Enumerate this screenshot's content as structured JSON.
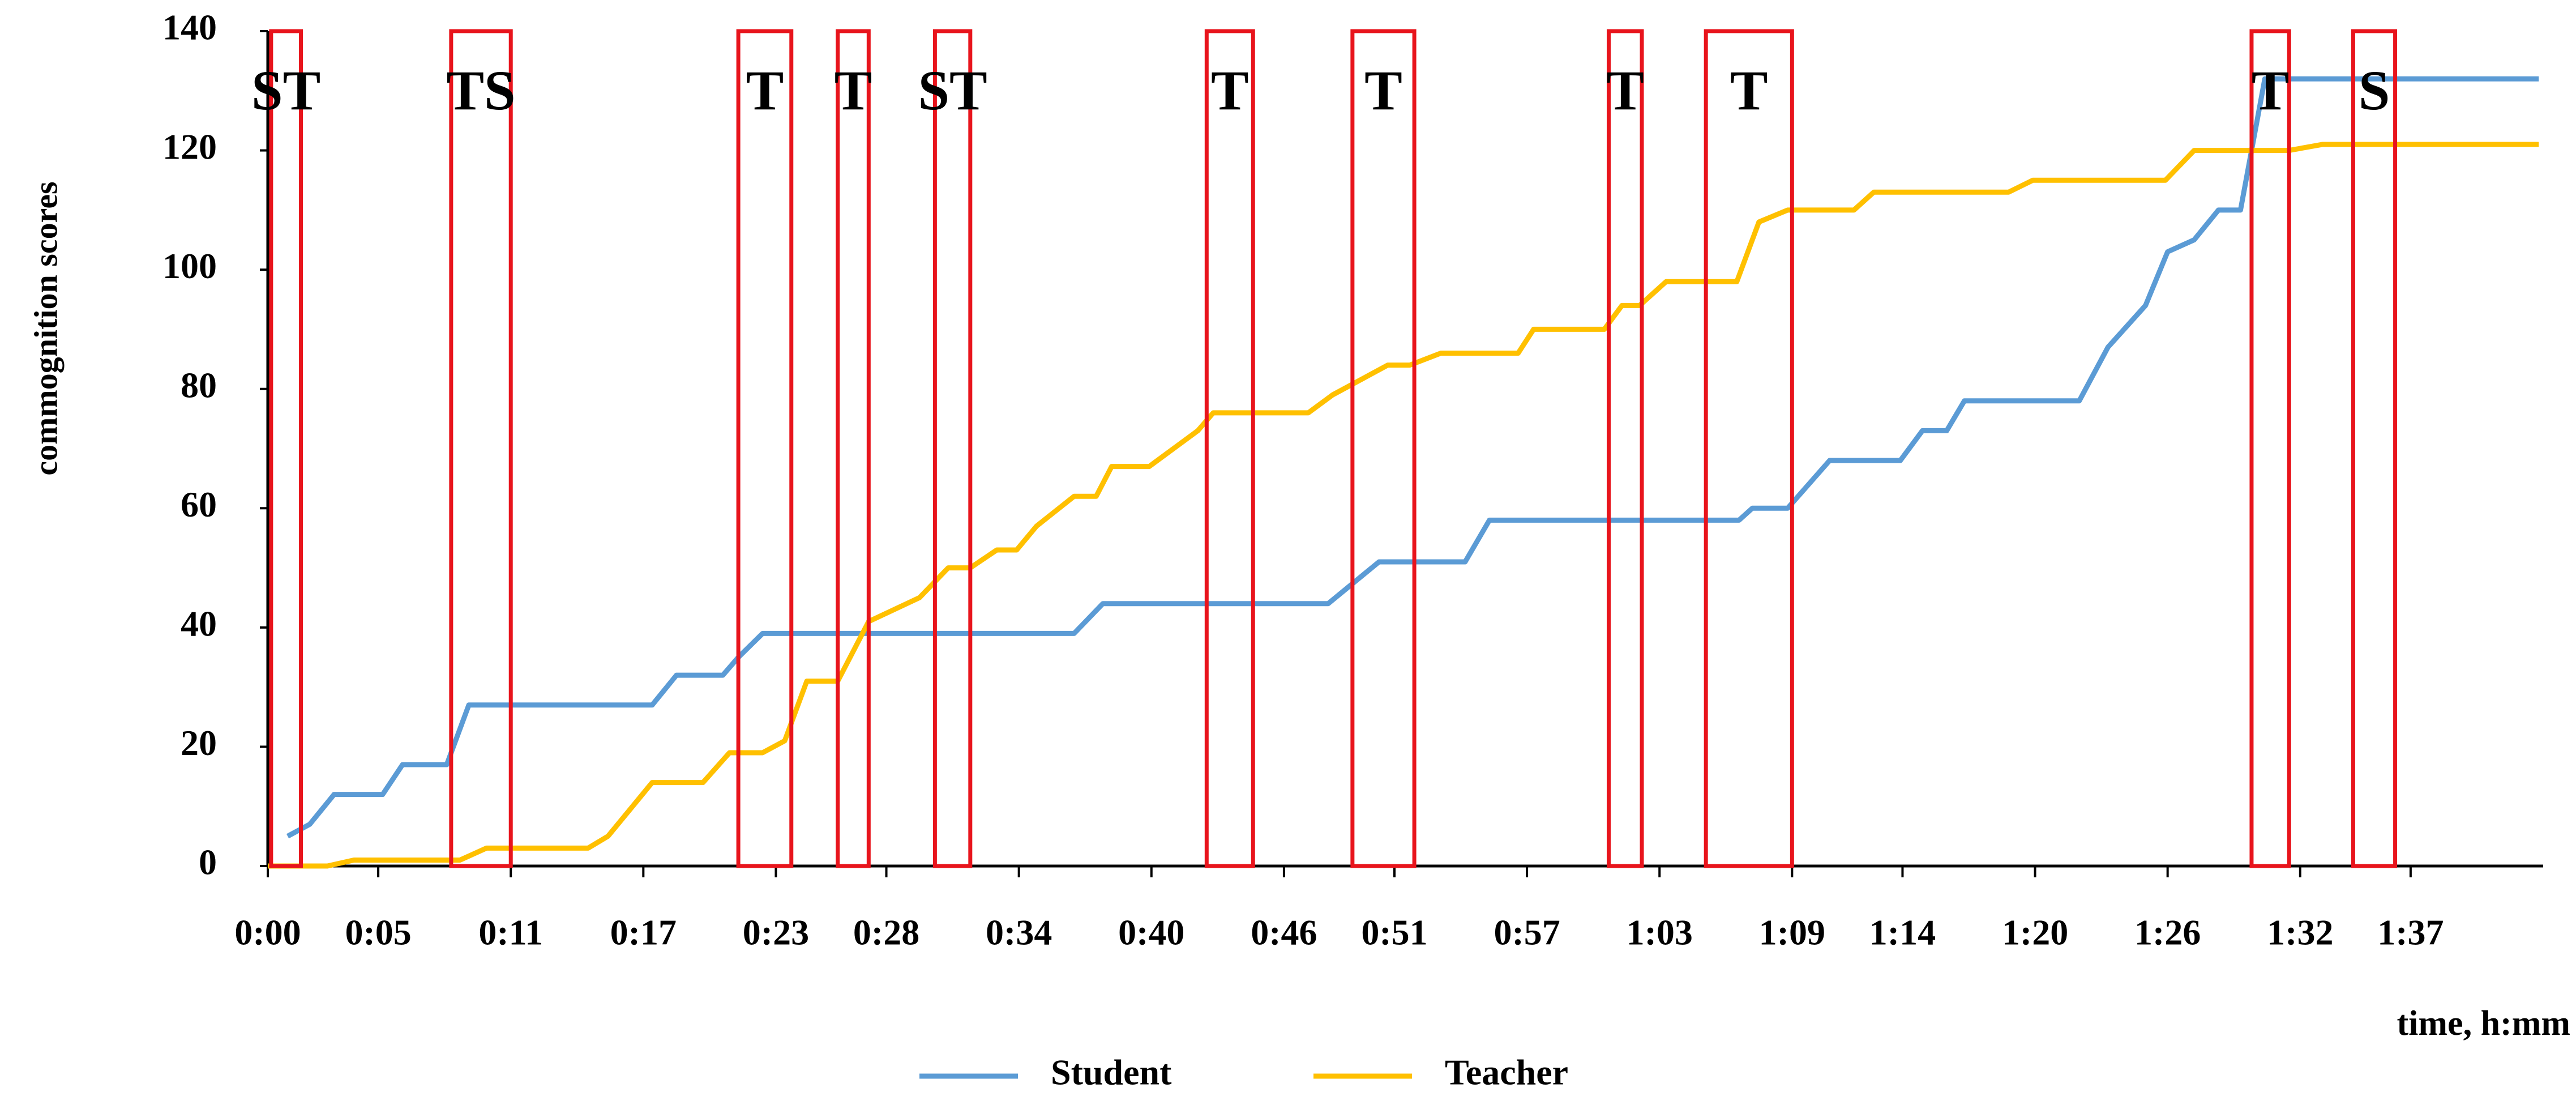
{
  "chart_data": {
    "type": "line",
    "y_label": "commognition scores",
    "x_label": "time, h:mm",
    "xlim": [
      0,
      103
    ],
    "xticks": [
      {
        "value": 0,
        "label": "0:00"
      },
      {
        "value": 5,
        "label": "0:05"
      },
      {
        "value": 11,
        "label": "0:11"
      },
      {
        "value": 17,
        "label": "0:17"
      },
      {
        "value": 23,
        "label": "0:23"
      },
      {
        "value": 28,
        "label": "0:28"
      },
      {
        "value": 34,
        "label": "0:34"
      },
      {
        "value": 40,
        "label": "0:40"
      },
      {
        "value": 46,
        "label": "0:46"
      },
      {
        "value": 51,
        "label": "0:51"
      },
      {
        "value": 57,
        "label": "0:57"
      },
      {
        "value": 63,
        "label": "1:03"
      },
      {
        "value": 69,
        "label": "1:09"
      },
      {
        "value": 74,
        "label": "1:14"
      },
      {
        "value": 80,
        "label": "1:20"
      },
      {
        "value": 86,
        "label": "1:26"
      },
      {
        "value": 92,
        "label": "1:32"
      },
      {
        "value": 97,
        "label": "1:37"
      }
    ],
    "ylim": [
      0,
      140
    ],
    "yticks": [
      0,
      20,
      40,
      60,
      80,
      100,
      120,
      140
    ],
    "series": [
      {
        "name": "Student",
        "color": "#5b9bd5",
        "x": [
          0.9,
          1.9,
          3,
          5.2,
          6.1,
          8.1,
          9.1,
          17.4,
          18.5,
          20.6,
          21.3,
          22.4,
          36.5,
          37.8,
          48,
          50.3,
          54.2,
          55.3,
          66.6,
          67.2,
          68.8,
          70.7,
          73.9,
          74.9,
          76,
          76.8,
          82,
          83.3,
          85,
          86,
          87.2,
          88.3,
          89.3,
          90.4,
          102.8
        ],
        "values": [
          5,
          7,
          12,
          12,
          17,
          17,
          27,
          27,
          32,
          32,
          35,
          39,
          39,
          44,
          44,
          51,
          51,
          58,
          58,
          60,
          60,
          68,
          68,
          73,
          73,
          78,
          78,
          87,
          94,
          103,
          105,
          110,
          110,
          132,
          132
        ]
      },
      {
        "name": "Teacher",
        "color": "#ffc000",
        "x": [
          0,
          2.7,
          3.9,
          8.7,
          9.9,
          14.5,
          15.4,
          17.4,
          19.7,
          20.9,
          22.4,
          23.4,
          24.4,
          25.8,
          27.2,
          29.5,
          30.8,
          31.8,
          33,
          33.9,
          34.8,
          36.5,
          37.5,
          38.2,
          39.9,
          42.1,
          42.8,
          47.1,
          48.2,
          50.7,
          51.7,
          53.1,
          56.6,
          57.3,
          60.5,
          61.3,
          62.1,
          63.3,
          66.5,
          67.5,
          68.8,
          71.8,
          72.7,
          78.8,
          79.9,
          85.9,
          87.2,
          91.5,
          93,
          102.8
        ],
        "values": [
          0,
          0,
          1,
          1,
          3,
          3,
          5,
          14,
          14,
          19,
          19,
          21,
          31,
          31,
          41,
          45,
          50,
          50,
          53,
          53,
          57,
          62,
          62,
          67,
          67,
          73,
          76,
          76,
          79,
          84,
          84,
          86,
          86,
          90,
          90,
          94,
          94,
          98,
          98,
          108,
          110,
          110,
          113,
          113,
          115,
          115,
          120,
          120,
          121,
          121
        ]
      }
    ],
    "annotation_color": "#e8141c",
    "annotations": [
      {
        "text": "ST",
        "x": [
          0.15,
          1.5
        ]
      },
      {
        "text": "TS",
        "x": [
          8.3,
          11
        ]
      },
      {
        "text": "T",
        "x": [
          21.3,
          23.7
        ]
      },
      {
        "text": "T",
        "x": [
          25.8,
          27.2
        ]
      },
      {
        "text": "ST",
        "x": [
          30.2,
          31.8
        ]
      },
      {
        "text": "T",
        "x": [
          42.5,
          44.6
        ]
      },
      {
        "text": "T",
        "x": [
          49.1,
          51.9
        ]
      },
      {
        "text": "T",
        "x": [
          60.7,
          62.2
        ]
      },
      {
        "text": "T",
        "x": [
          65.1,
          69
        ]
      },
      {
        "text": "T",
        "x": [
          89.8,
          91.5
        ]
      },
      {
        "text": "S",
        "x": [
          94.4,
          96.3
        ]
      }
    ]
  }
}
